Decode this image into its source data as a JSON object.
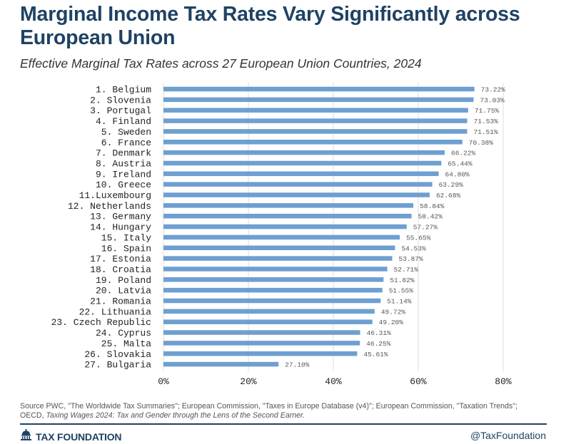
{
  "title": "Marginal Income Tax Rates Vary Significantly across European Union",
  "subtitle": "Effective Marginal Tax Rates across 27 European Union Countries, 2024",
  "source": {
    "line1": "Source PWC, \"The Worldwide Tax Summaries\"; European Commission, \"Taxes in Europe Database (v4)\"; European Commission, \"Taxation Trends\";",
    "line2_prefix": "OECD, ",
    "line2_italic": "Taxing Wages 2024: Tax and Gender through the Lens of the Second Earner."
  },
  "footer": {
    "brand": "TAX FOUNDATION",
    "handle": "@TaxFoundation"
  },
  "colors": {
    "bar": "#6e9fd0",
    "title": "#1f4264"
  },
  "chart_data": {
    "type": "bar",
    "orientation": "horizontal",
    "title": "Effective Marginal Tax Rates across 27 European Union Countries, 2024",
    "xlabel": "",
    "ylabel": "",
    "xlim": [
      0,
      80
    ],
    "xticks": [
      0,
      20,
      40,
      60,
      80
    ],
    "xtick_labels": [
      "0%",
      "20%",
      "40%",
      "60%",
      "80%"
    ],
    "grid": true,
    "categories": [
      "1. Belgium",
      "2. Slovenia",
      "3. Portugal",
      "4. Finland",
      "5. Sweden",
      "6. France",
      "7. Denmark",
      "8. Austria",
      "9. Ireland",
      "10. Greece",
      "11.Luxembourg",
      "12. Netherlands",
      "13. Germany",
      "14. Hungary",
      "15. Italy",
      "16. Spain",
      "17. Estonia",
      "18. Croatia",
      "19. Poland",
      "20. Latvia",
      "21. Romania",
      "22. Lithuania",
      "23. Czech Republic",
      "24. Cyprus",
      "25. Malta",
      "26. Slovakia",
      "27. Bulgaria"
    ],
    "values": [
      73.22,
      73.03,
      71.75,
      71.53,
      71.51,
      70.38,
      66.22,
      65.44,
      64.8,
      63.29,
      62.68,
      58.84,
      58.42,
      57.27,
      55.65,
      54.53,
      53.87,
      52.71,
      51.82,
      51.55,
      51.14,
      49.72,
      49.2,
      46.31,
      46.25,
      45.61,
      27.1
    ],
    "value_labels": [
      "73.22%",
      "73.03%",
      "71.75%",
      "71.53%",
      "71.51%",
      "70.38%",
      "66.22%",
      "65.44%",
      "64.80%",
      "63.29%",
      "62.68%",
      "58.84%",
      "58.42%",
      "57.27%",
      "55.65%",
      "54.53%",
      "53.87%",
      "52.71%",
      "51.82%",
      "51.55%",
      "51.14%",
      "49.72%",
      "49.20%",
      "46.31%",
      "46.25%",
      "45.61%",
      "27.10%"
    ]
  }
}
